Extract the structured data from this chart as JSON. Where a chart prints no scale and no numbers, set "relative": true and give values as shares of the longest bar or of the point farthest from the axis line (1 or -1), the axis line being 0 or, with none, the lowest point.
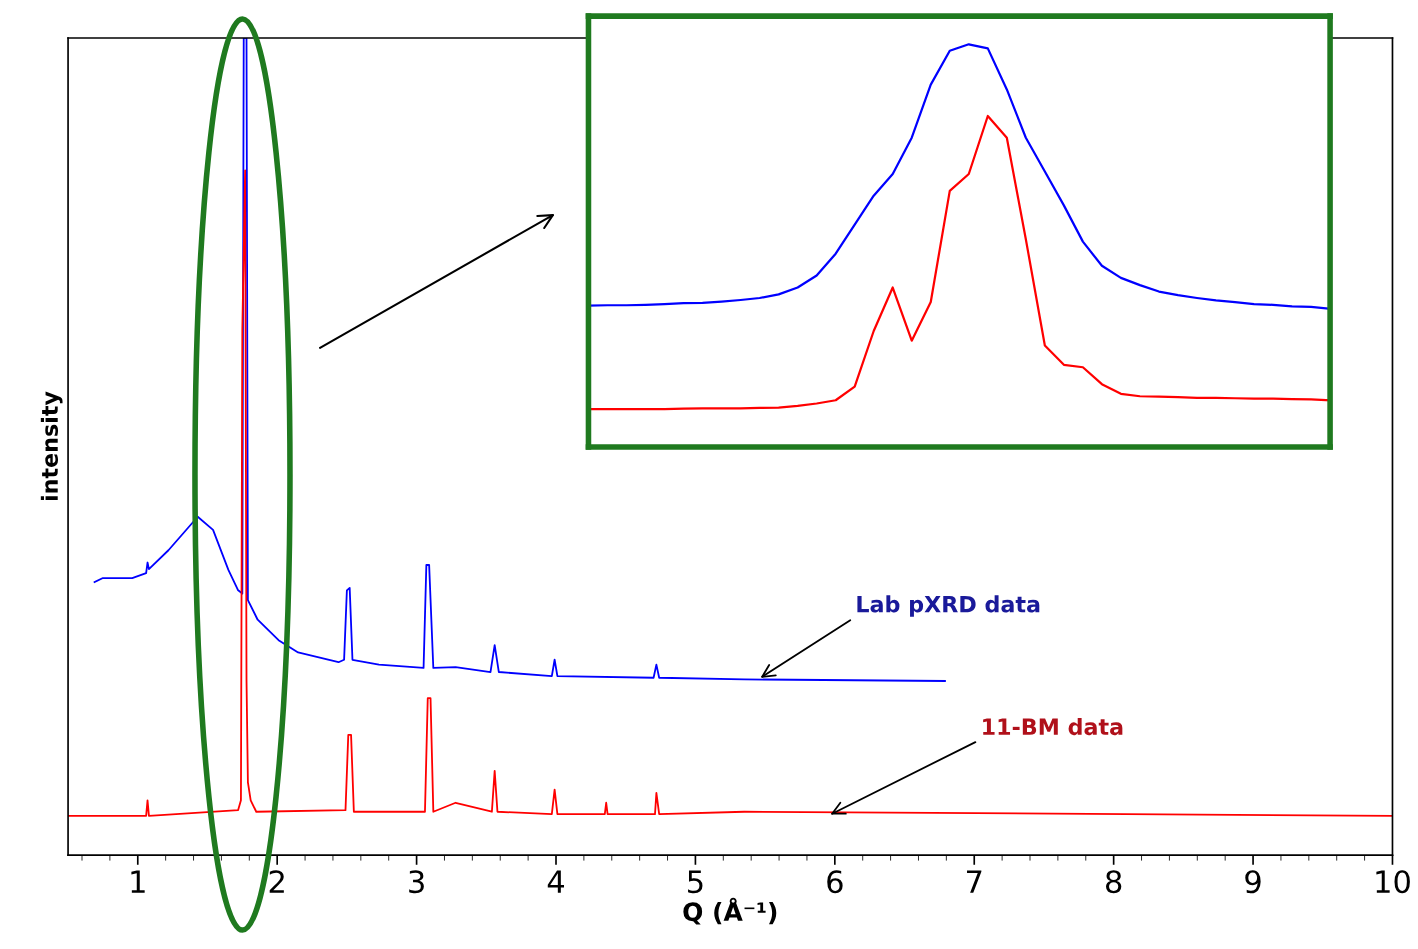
{
  "chart_data": [
    {
      "type": "line",
      "xlabel": "Q (Å⁻¹)",
      "ylabel": "intensity",
      "relative": true,
      "xlim": [
        0.5,
        10
      ],
      "xticks": [
        1,
        2,
        3,
        4,
        5,
        6,
        7,
        8,
        9,
        10
      ],
      "tick_labels": "x",
      "grid": false,
      "legend": false,
      "series": [
        {
          "color": "#0000ff",
          "x": [
            0.69,
            0.75,
            0.96,
            1.06,
            1.07,
            1.08,
            1.22,
            1.43,
            1.54,
            1.65,
            1.72,
            1.75,
            1.76,
            1.78,
            1.79,
            1.86,
            2.01,
            2.15,
            2.44,
            2.48,
            2.5,
            2.52,
            2.54,
            2.73,
            3.05,
            3.07,
            3.09,
            3.12,
            3.28,
            3.53,
            3.56,
            3.59,
            3.97,
            3.99,
            4.01,
            4.7,
            4.72,
            4.74,
            5.35,
            6.79
          ],
          "values": [
            0.334,
            0.339,
            0.339,
            0.345,
            0.358,
            0.35,
            0.373,
            0.414,
            0.398,
            0.349,
            0.324,
            0.32,
            1.0,
            1.0,
            0.312,
            0.288,
            0.263,
            0.248,
            0.236,
            0.239,
            0.324,
            0.327,
            0.239,
            0.233,
            0.229,
            0.355,
            0.355,
            0.229,
            0.23,
            0.224,
            0.257,
            0.224,
            0.219,
            0.239,
            0.219,
            0.217,
            0.233,
            0.217,
            0.215,
            0.213
          ]
        },
        {
          "color": "#ff0000",
          "x": [
            0.5,
            1.06,
            1.07,
            1.08,
            1.72,
            1.74,
            1.75,
            1.77,
            1.78,
            1.79,
            1.81,
            1.85,
            2.49,
            2.51,
            2.53,
            2.55,
            3.06,
            3.08,
            3.1,
            3.12,
            3.28,
            3.54,
            3.56,
            3.58,
            3.97,
            3.99,
            4.01,
            4.35,
            4.36,
            4.37,
            4.71,
            4.72,
            4.74,
            5.35,
            10
          ],
          "values": [
            0.048,
            0.048,
            0.067,
            0.048,
            0.055,
            0.067,
            0.643,
            0.838,
            0.214,
            0.089,
            0.067,
            0.053,
            0.055,
            0.147,
            0.147,
            0.053,
            0.053,
            0.192,
            0.192,
            0.053,
            0.064,
            0.053,
            0.103,
            0.053,
            0.05,
            0.08,
            0.05,
            0.05,
            0.064,
            0.05,
            0.05,
            0.076,
            0.05,
            0.053,
            0.048
          ]
        }
      ],
      "annotations": [
        {
          "text": "Lab pXRD data",
          "x": 5.45,
          "y": 0.215
        },
        {
          "text": "11-BM data",
          "x": 5.95,
          "y": 0.048
        }
      ]
    },
    {
      "type": "line",
      "relative": true,
      "tick_labels": false,
      "grid": false,
      "legend": false,
      "categories": [
        null,
        null,
        null,
        null,
        null,
        null,
        null,
        null,
        null,
        null,
        null,
        null,
        null,
        null,
        null,
        null,
        null,
        null,
        null,
        null,
        null,
        null,
        null,
        null,
        null,
        null,
        null,
        null,
        null,
        null,
        null,
        null,
        null,
        null,
        null,
        null,
        null,
        null,
        null,
        null
      ],
      "series": [
        {
          "color": "#0000ff",
          "values": [
            0.351,
            0.352,
            0.352,
            0.353,
            0.355,
            0.357,
            0.358,
            0.361,
            0.365,
            0.37,
            0.379,
            0.396,
            0.426,
            0.48,
            0.552,
            0.624,
            0.678,
            0.768,
            0.9,
            0.984,
            1.0,
            0.99,
            0.888,
            0.768,
            0.684,
            0.6,
            0.51,
            0.45,
            0.42,
            0.402,
            0.386,
            0.377,
            0.37,
            0.364,
            0.36,
            0.355,
            0.353,
            0.349,
            0.348,
            0.343
          ]
        },
        {
          "color": "#ff0000",
          "values": [
            0.094,
            0.094,
            0.094,
            0.094,
            0.094,
            0.095,
            0.096,
            0.096,
            0.096,
            0.097,
            0.098,
            0.102,
            0.108,
            0.116,
            0.15,
            0.288,
            0.396,
            0.264,
            0.36,
            0.636,
            0.678,
            0.822,
            0.768,
            0.516,
            0.252,
            0.204,
            0.198,
            0.156,
            0.132,
            0.126,
            0.125,
            0.124,
            0.122,
            0.122,
            0.121,
            0.12,
            0.12,
            0.119,
            0.118,
            0.116
          ]
        }
      ]
    }
  ]
}
